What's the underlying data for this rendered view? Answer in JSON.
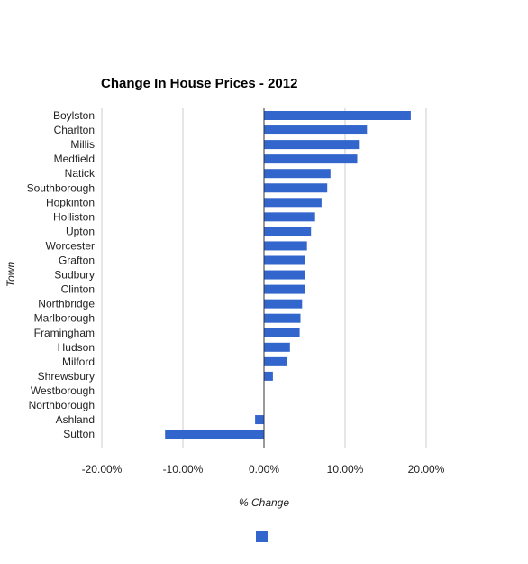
{
  "chart_data": {
    "type": "bar",
    "orientation": "horizontal",
    "title": "Change In House Prices - 2012",
    "xlabel": "% Change",
    "ylabel": "Town",
    "xlim": [
      -0.2,
      0.2
    ],
    "x_ticks": [
      "-20.00%",
      "-10.00%",
      "0.00%",
      "10.00%",
      "20.00%"
    ],
    "grid": true,
    "legend": {
      "position": "bottom",
      "entries": [
        ""
      ]
    },
    "bar_color": "#3366cc",
    "categories": [
      "Boylston",
      "Charlton",
      "Millis",
      "Medfield",
      "Natick",
      "Southborough",
      "Hopkinton",
      "Holliston",
      "Upton",
      "Worcester",
      "Grafton",
      "Sudbury",
      "Clinton",
      "Northbridge",
      "Marlborough",
      "Framingham",
      "Hudson",
      "Milford",
      "Shrewsbury",
      "Westborough",
      "Northborough",
      "Ashland",
      "Sutton"
    ],
    "values": [
      0.181,
      0.127,
      0.117,
      0.115,
      0.082,
      0.078,
      0.071,
      0.063,
      0.058,
      0.053,
      0.05,
      0.05,
      0.05,
      0.047,
      0.045,
      0.044,
      0.032,
      0.028,
      0.011,
      0.0,
      0.0,
      -0.011,
      -0.122
    ]
  }
}
